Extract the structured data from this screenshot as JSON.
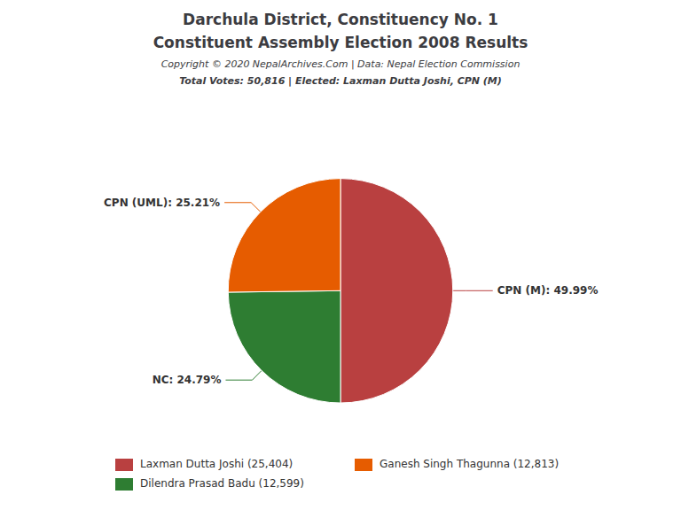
{
  "chart_data": {
    "type": "pie",
    "title": "Darchula District, Constituency No. 1",
    "subtitle": "Constituent Assembly Election 2008 Results",
    "annotations": [
      "Copyright © 2020 NepalArchives.Com | Data: Nepal Election Commission",
      "Total Votes: 50,816 | Elected: Laxman Dutta Joshi, CPN (M)"
    ],
    "categories": [
      "CPN (M)",
      "NC",
      "CPN (UML)"
    ],
    "values": [
      49.99,
      24.79,
      25.21
    ],
    "value_labels": [
      "CPN (M): 49.99%",
      "NC: 24.79%",
      "CPN (UML): 25.21%"
    ],
    "colors": [
      "#B94040",
      "#2E7D32",
      "#E65C00"
    ],
    "data_labels": true,
    "legend": "bottom",
    "legend_entries": [
      {
        "label": "Laxman Dutta Joshi (25,404)",
        "color": "#B94040"
      },
      {
        "label": "Ganesh Singh Thagunna (12,813)",
        "color": "#E65C00"
      },
      {
        "label": "Dilendra Prasad Badu (12,599)",
        "color": "#2E7D32"
      }
    ]
  }
}
